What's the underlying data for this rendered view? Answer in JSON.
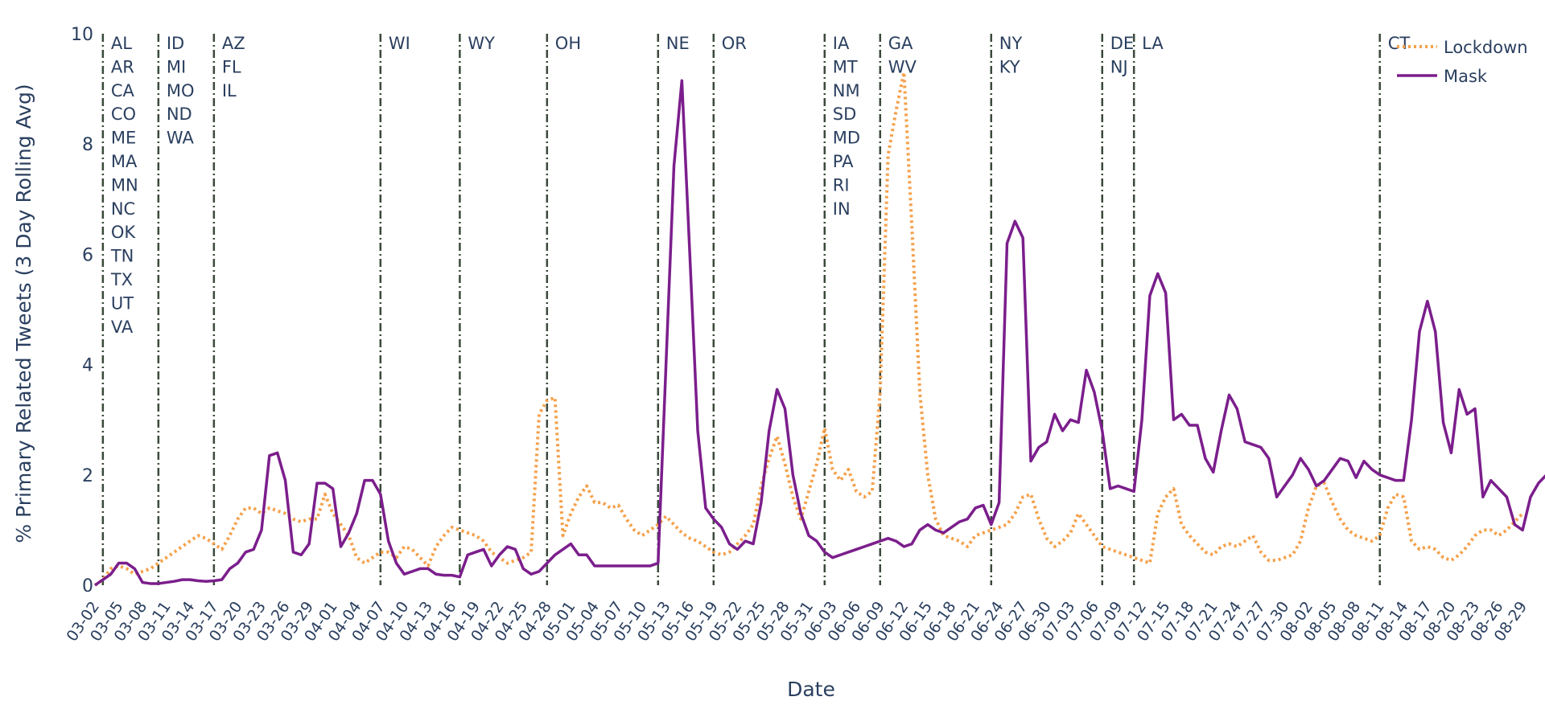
{
  "chart_data": {
    "type": "line",
    "title": "",
    "xlabel": "Date",
    "ylabel": "% Primary Related Tweets (3 Day Rolling Avg)",
    "ylim": [
      0,
      10
    ],
    "yticks": [
      0,
      2,
      4,
      6,
      8,
      10
    ],
    "grid": false,
    "legend_position": "top-right",
    "x_start": "03-02",
    "x_end": "08-30",
    "x_ticks": [
      "03-02",
      "03-05",
      "03-08",
      "03-11",
      "03-14",
      "03-17",
      "03-20",
      "03-23",
      "03-26",
      "03-29",
      "04-01",
      "04-04",
      "04-07",
      "04-10",
      "04-13",
      "04-16",
      "04-19",
      "04-22",
      "04-25",
      "04-28",
      "05-01",
      "05-04",
      "05-07",
      "05-10",
      "05-13",
      "05-16",
      "05-19",
      "05-22",
      "05-25",
      "05-28",
      "05-31",
      "06-03",
      "06-06",
      "06-09",
      "06-12",
      "06-15",
      "06-18",
      "06-21",
      "06-24",
      "06-27",
      "06-30",
      "07-03",
      "07-06",
      "07-09",
      "07-12",
      "07-15",
      "07-18",
      "07-21",
      "07-24",
      "07-27",
      "07-30",
      "08-02",
      "08-05",
      "08-08",
      "08-11",
      "08-14",
      "08-17",
      "08-20",
      "08-23",
      "08-26",
      "08-29"
    ],
    "series": [
      {
        "name": "Lockdown",
        "color": "#f5a04a",
        "dash": "dotted",
        "values": [
          0,
          0.1,
          0.3,
          0.35,
          0.3,
          0.2,
          0.25,
          0.3,
          0.4,
          0.5,
          0.6,
          0.7,
          0.8,
          0.9,
          0.85,
          0.75,
          0.65,
          0.9,
          1.2,
          1.4,
          1.4,
          1.3,
          1.4,
          1.35,
          1.3,
          1.2,
          1.15,
          1.2,
          1.2,
          1.65,
          1.3,
          1.1,
          0.9,
          0.5,
          0.4,
          0.5,
          0.6,
          0.6,
          0.5,
          0.7,
          0.65,
          0.5,
          0.35,
          0.7,
          0.9,
          1.05,
          1.0,
          0.95,
          0.9,
          0.8,
          0.6,
          0.5,
          0.4,
          0.45,
          0.5,
          0.6,
          3.1,
          3.35,
          3.4,
          0.9,
          1.3,
          1.6,
          1.8,
          1.5,
          1.5,
          1.4,
          1.45,
          1.2,
          1.0,
          0.9,
          1.0,
          1.1,
          1.25,
          1.1,
          0.95,
          0.85,
          0.8,
          0.7,
          0.6,
          0.55,
          0.6,
          0.75,
          0.9,
          1.1,
          1.8,
          2.3,
          2.7,
          2.2,
          1.6,
          1.2,
          1.7,
          2.2,
          2.85,
          2.1,
          1.9,
          2.1,
          1.7,
          1.6,
          1.7,
          3.5,
          7.8,
          8.6,
          9.3,
          6.5,
          3.5,
          2.0,
          1.2,
          0.9,
          0.85,
          0.8,
          0.7,
          0.9,
          0.95,
          1.0,
          1.05,
          1.1,
          1.3,
          1.6,
          1.65,
          1.2,
          0.85,
          0.7,
          0.8,
          0.95,
          1.3,
          1.1,
          0.9,
          0.7,
          0.65,
          0.6,
          0.55,
          0.5,
          0.45,
          0.4,
          1.3,
          1.6,
          1.75,
          1.1,
          0.9,
          0.75,
          0.6,
          0.55,
          0.7,
          0.75,
          0.7,
          0.8,
          0.9,
          0.6,
          0.45,
          0.45,
          0.5,
          0.55,
          0.8,
          1.4,
          1.8,
          1.85,
          1.5,
          1.2,
          1.0,
          0.9,
          0.85,
          0.8,
          0.9,
          1.4,
          1.65,
          1.6,
          0.8,
          0.65,
          0.7,
          0.65,
          0.5,
          0.45,
          0.55,
          0.7,
          0.9,
          1.0,
          1.0,
          0.9,
          1.0,
          1.15,
          1.3
        ]
      },
      {
        "name": "Mask",
        "color": "#7b1e8c",
        "dash": "solid",
        "values": [
          0,
          0.1,
          0.2,
          0.4,
          0.4,
          0.3,
          0.05,
          0.03,
          0.03,
          0.05,
          0.07,
          0.1,
          0.1,
          0.08,
          0.07,
          0.08,
          0.1,
          0.3,
          0.4,
          0.6,
          0.65,
          1.0,
          2.35,
          2.4,
          1.9,
          0.6,
          0.55,
          0.75,
          1.85,
          1.85,
          1.75,
          0.7,
          0.95,
          1.3,
          1.9,
          1.9,
          1.65,
          0.8,
          0.4,
          0.2,
          0.25,
          0.3,
          0.3,
          0.2,
          0.18,
          0.18,
          0.15,
          0.55,
          0.6,
          0.65,
          0.35,
          0.55,
          0.7,
          0.65,
          0.3,
          0.2,
          0.25,
          0.4,
          0.55,
          0.65,
          0.75,
          0.55,
          0.55,
          0.35,
          0.35,
          0.35,
          0.35,
          0.35,
          0.35,
          0.35,
          0.35,
          0.4,
          4.0,
          7.6,
          9.15,
          6.0,
          2.8,
          1.4,
          1.2,
          1.05,
          0.75,
          0.65,
          0.8,
          0.75,
          1.5,
          2.8,
          3.55,
          3.2,
          2.0,
          1.3,
          0.9,
          0.8,
          0.6,
          0.5,
          0.55,
          0.6,
          0.65,
          0.7,
          0.75,
          0.8,
          0.85,
          0.8,
          0.7,
          0.75,
          1.0,
          1.1,
          1.0,
          0.95,
          1.05,
          1.15,
          1.2,
          1.4,
          1.45,
          1.1,
          1.5,
          6.2,
          6.6,
          6.3,
          2.25,
          2.5,
          2.6,
          3.1,
          2.8,
          3.0,
          2.95,
          3.9,
          3.5,
          2.8,
          1.75,
          1.8,
          1.75,
          1.7,
          3.0,
          5.25,
          5.65,
          5.3,
          3.0,
          3.1,
          2.9,
          2.9,
          2.3,
          2.05,
          2.8,
          3.45,
          3.2,
          2.6,
          2.55,
          2.5,
          2.3,
          1.6,
          1.8,
          2.0,
          2.3,
          2.1,
          1.8,
          1.9,
          2.1,
          2.3,
          2.25,
          1.95,
          2.25,
          2.1,
          2.0,
          1.95,
          1.9,
          1.9,
          3.0,
          4.6,
          5.15,
          4.6,
          2.95,
          2.4,
          3.55,
          3.1,
          3.2,
          1.6,
          1.9,
          1.75,
          1.6,
          1.1,
          1.0,
          1.6,
          1.85,
          2.0,
          1.8
        ]
      }
    ],
    "events": [
      {
        "date": "03-03",
        "labels": [
          "AL",
          "AR",
          "CA",
          "CO",
          "ME",
          "MA",
          "MN",
          "NC",
          "OK",
          "TN",
          "TX",
          "UT",
          "VA"
        ]
      },
      {
        "date": "03-10",
        "labels": [
          "ID",
          "MI",
          "MO",
          "ND",
          "WA"
        ]
      },
      {
        "date": "03-17",
        "labels": [
          "AZ",
          "FL",
          "IL"
        ]
      },
      {
        "date": "04-07",
        "labels": [
          "WI"
        ]
      },
      {
        "date": "04-17",
        "labels": [
          "WY"
        ]
      },
      {
        "date": "04-28",
        "labels": [
          "OH"
        ]
      },
      {
        "date": "05-12",
        "labels": [
          "NE"
        ]
      },
      {
        "date": "05-19",
        "labels": [
          "OR"
        ]
      },
      {
        "date": "06-02",
        "labels": [
          "IA",
          "MT",
          "NM",
          "SD",
          "MD",
          "PA",
          "RI",
          "IN"
        ]
      },
      {
        "date": "06-09",
        "labels": [
          "GA",
          "WV"
        ]
      },
      {
        "date": "06-23",
        "labels": [
          "NY",
          "KY"
        ]
      },
      {
        "date": "07-07",
        "labels": [
          "DE",
          "NJ"
        ]
      },
      {
        "date": "07-11",
        "labels": [
          "LA"
        ]
      },
      {
        "date": "08-11",
        "labels": [
          "CT"
        ]
      }
    ]
  }
}
